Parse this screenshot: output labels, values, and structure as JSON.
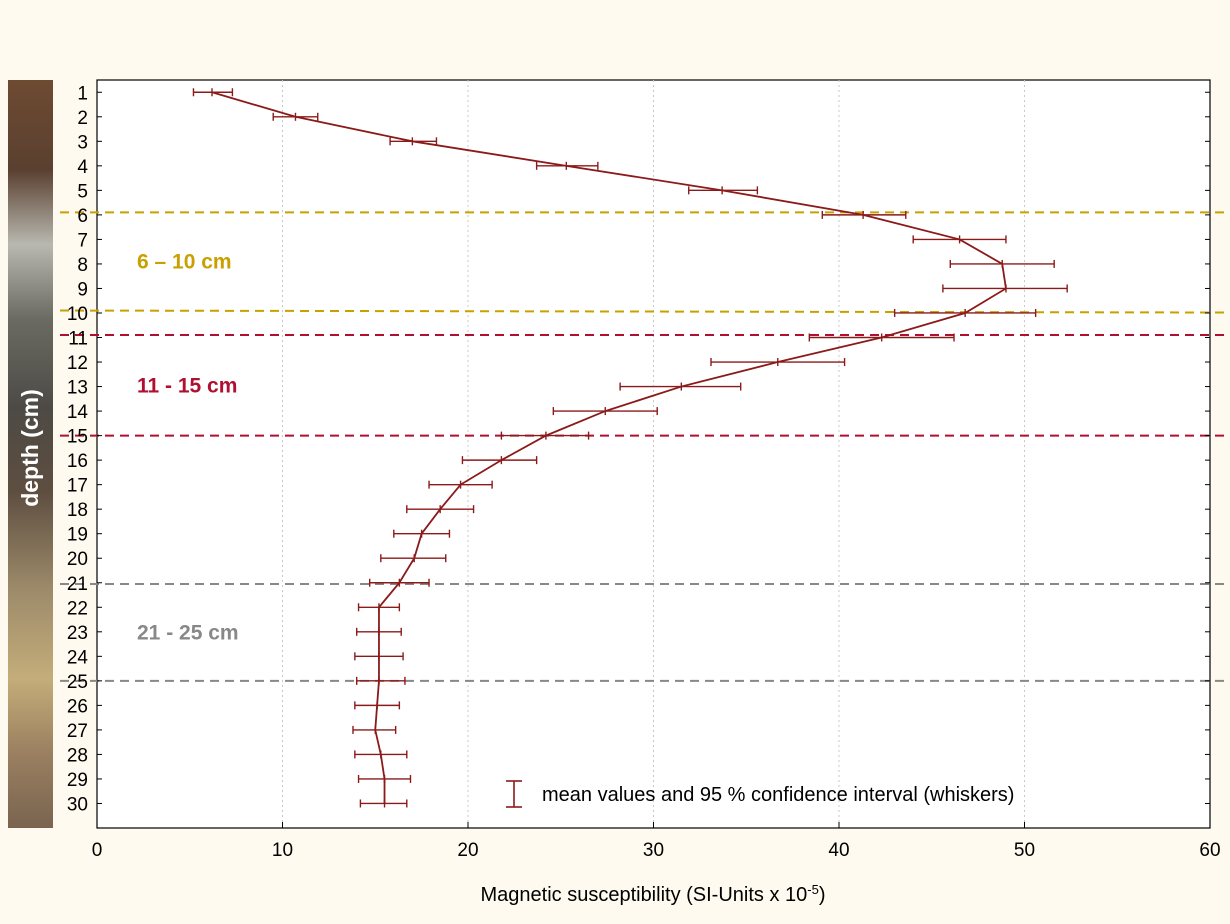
{
  "chart_data": {
    "type": "line",
    "orientation": "horizontal-profile",
    "xlabel_main": "Magnetic susceptibility (SI-Units x 10",
    "xlabel_sup": "-5",
    "xlabel_end": ")",
    "ylabel": "depth (cm)",
    "xlim": [
      0,
      60
    ],
    "ylim": [
      0.5,
      31
    ],
    "x_ticks": [
      "0",
      "10",
      "20",
      "30",
      "40",
      "50",
      "60"
    ],
    "y_ticks": [
      "1",
      "2",
      "3",
      "4",
      "5",
      "6",
      "7",
      "8",
      "9",
      "10",
      "11",
      "12",
      "13",
      "14",
      "15",
      "16",
      "17",
      "18",
      "19",
      "20",
      "21",
      "22",
      "23",
      "24",
      "25",
      "26",
      "27",
      "28",
      "29",
      "30"
    ],
    "grid": {
      "vertical": true,
      "horizontal": false
    },
    "legend": {
      "text": "mean values and 95 % confidence interval (whiskers)",
      "placement": "bottom-right"
    },
    "colors": {
      "series": "#8b1a1a",
      "layer_6_10": "#c9a000",
      "layer_11_15": "#b01030",
      "layer_21_25": "#888888",
      "soil_strip": "#6b5a45"
    },
    "series": [
      {
        "depth": [
          1,
          2,
          3,
          4,
          5,
          6,
          7,
          8,
          9,
          10,
          11,
          12,
          13,
          14,
          15,
          16,
          17,
          18,
          19,
          20,
          21,
          22,
          23,
          24,
          25,
          26,
          27,
          28,
          29,
          30
        ],
        "mean": [
          6.2,
          10.7,
          17.0,
          25.3,
          33.7,
          41.3,
          46.5,
          48.8,
          49.0,
          46.8,
          42.3,
          36.7,
          31.5,
          27.4,
          24.2,
          21.8,
          19.6,
          18.5,
          17.5,
          17.1,
          16.3,
          15.2,
          15.2,
          15.2,
          15.2,
          15.1,
          15.0,
          15.3,
          15.5,
          15.5
        ],
        "lower": [
          5.2,
          9.5,
          15.8,
          23.7,
          31.9,
          39.1,
          44.0,
          46.0,
          45.6,
          43.0,
          38.4,
          33.1,
          28.2,
          24.6,
          21.8,
          19.7,
          17.9,
          16.7,
          16.0,
          15.3,
          14.7,
          14.1,
          14.0,
          13.9,
          14.0,
          13.9,
          13.8,
          13.9,
          14.1,
          14.2
        ],
        "upper": [
          7.3,
          11.9,
          18.3,
          27.0,
          35.6,
          43.6,
          49.0,
          51.6,
          52.3,
          50.6,
          46.2,
          40.3,
          34.7,
          30.2,
          26.5,
          23.7,
          21.3,
          20.3,
          19.0,
          18.8,
          17.9,
          16.3,
          16.4,
          16.5,
          16.6,
          16.3,
          16.1,
          16.7,
          16.9,
          16.7
        ]
      }
    ],
    "layers": [
      {
        "label": "6 – 10 cm",
        "top_depth": 5.9,
        "bottom_depth": 9.9,
        "color_key": "layer_6_10"
      },
      {
        "label": "11 - 15 cm",
        "top_depth": 10.9,
        "bottom_depth": 15.0,
        "color_key": "layer_11_15"
      },
      {
        "label": "21 - 25 cm",
        "top_depth": 21.05,
        "bottom_depth": 25.0,
        "color_key": "layer_21_25"
      }
    ]
  }
}
